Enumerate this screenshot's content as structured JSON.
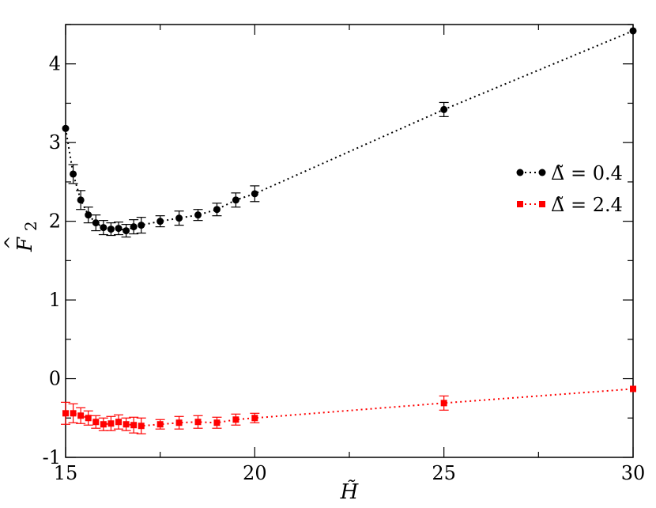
{
  "chart_data": {
    "type": "scatter",
    "title": "",
    "xlabel": "H̃",
    "ylabel": "F̂₂",
    "ylabel_main": "F",
    "ylabel_sub": "2",
    "ylabel_hat": "^",
    "xlim": [
      15,
      30
    ],
    "ylim": [
      -1,
      4.5
    ],
    "x_ticks": [
      15,
      20,
      25,
      30
    ],
    "x_tick_labels": [
      "15",
      "20",
      "25",
      "30"
    ],
    "y_ticks": [
      -1,
      0,
      1,
      2,
      3,
      4
    ],
    "y_tick_labels": [
      "-1",
      "0",
      "1",
      "2",
      "3",
      "4"
    ],
    "grid": false,
    "legend_position": "right",
    "series": [
      {
        "name": "Δ̃ = 0.4",
        "color": "#000000",
        "marker": "circle",
        "line": "dotted",
        "x": [
          15.0,
          15.2,
          15.4,
          15.6,
          15.8,
          16.0,
          16.2,
          16.4,
          16.6,
          16.8,
          17.0,
          17.5,
          18.0,
          18.5,
          19.0,
          19.5,
          20.0,
          25.0,
          30.0
        ],
        "y": [
          3.18,
          2.6,
          2.27,
          2.08,
          1.98,
          1.92,
          1.9,
          1.91,
          1.88,
          1.93,
          1.95,
          2.0,
          2.04,
          2.08,
          2.15,
          2.27,
          2.35,
          3.42,
          4.42
        ],
        "err": [
          0.0,
          0.12,
          0.12,
          0.1,
          0.1,
          0.09,
          0.08,
          0.08,
          0.08,
          0.09,
          0.1,
          0.07,
          0.09,
          0.07,
          0.08,
          0.09,
          0.1,
          0.09,
          0.0
        ]
      },
      {
        "name": "Δ̃ = 2.4",
        "color": "#ff0000",
        "marker": "square",
        "line": "dotted",
        "x": [
          15.0,
          15.2,
          15.4,
          15.6,
          15.8,
          16.0,
          16.2,
          16.4,
          16.6,
          16.8,
          17.0,
          17.5,
          18.0,
          18.5,
          19.0,
          19.5,
          20.0,
          25.0,
          30.0
        ],
        "y": [
          -0.44,
          -0.44,
          -0.47,
          -0.5,
          -0.55,
          -0.58,
          -0.57,
          -0.55,
          -0.58,
          -0.59,
          -0.6,
          -0.58,
          -0.56,
          -0.55,
          -0.56,
          -0.52,
          -0.5,
          -0.31,
          -0.13
        ],
        "err": [
          0.14,
          0.12,
          0.1,
          0.09,
          0.08,
          0.08,
          0.09,
          0.09,
          0.08,
          0.1,
          0.1,
          0.06,
          0.08,
          0.08,
          0.07,
          0.07,
          0.06,
          0.09,
          0.0
        ]
      }
    ],
    "legend": [
      {
        "label": "Δ̃ = 0.4",
        "color": "#000000",
        "marker": "circle"
      },
      {
        "label": "Δ̃ = 2.4",
        "color": "#ff0000",
        "marker": "square"
      }
    ]
  }
}
